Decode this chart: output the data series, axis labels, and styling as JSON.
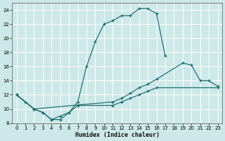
{
  "xlabel": "Humidex (Indice chaleur)",
  "xlim": [
    -0.5,
    23.5
  ],
  "ylim": [
    8,
    25
  ],
  "yticks": [
    8,
    10,
    12,
    14,
    16,
    18,
    20,
    22,
    24
  ],
  "xticks": [
    0,
    1,
    2,
    3,
    4,
    5,
    6,
    7,
    8,
    9,
    10,
    11,
    12,
    13,
    14,
    15,
    16,
    17,
    18,
    19,
    20,
    21,
    22,
    23
  ],
  "bg_color": "#cde8e8",
  "grid_color": "#b8d8d8",
  "line_color": "#1a6b6b",
  "series1_x": [
    0,
    1,
    2,
    3,
    4,
    5,
    6,
    7,
    8,
    9,
    10,
    11,
    12,
    13,
    14,
    15,
    16,
    17
  ],
  "series1_y": [
    12,
    11,
    10,
    9.5,
    8.5,
    9,
    9.5,
    11,
    16,
    19.5,
    22,
    22.5,
    23.2,
    23.2,
    24.2,
    24.2,
    23.5,
    17.5
  ],
  "series2_x": [
    0,
    2,
    11,
    12,
    13,
    14,
    15,
    16,
    19,
    20,
    21,
    22,
    23
  ],
  "series2_y": [
    12,
    10,
    11,
    11.5,
    12.2,
    13,
    13.5,
    14.2,
    16.5,
    16.2,
    14,
    14,
    13.2
  ],
  "series3_x": [
    0,
    2,
    3,
    4,
    5,
    6,
    7,
    11,
    12,
    13,
    14,
    15,
    16,
    23
  ],
  "series3_y": [
    12,
    10,
    9.5,
    8.5,
    8.5,
    9.5,
    10.5,
    10.5,
    11,
    11.5,
    12,
    12.5,
    13,
    13
  ]
}
